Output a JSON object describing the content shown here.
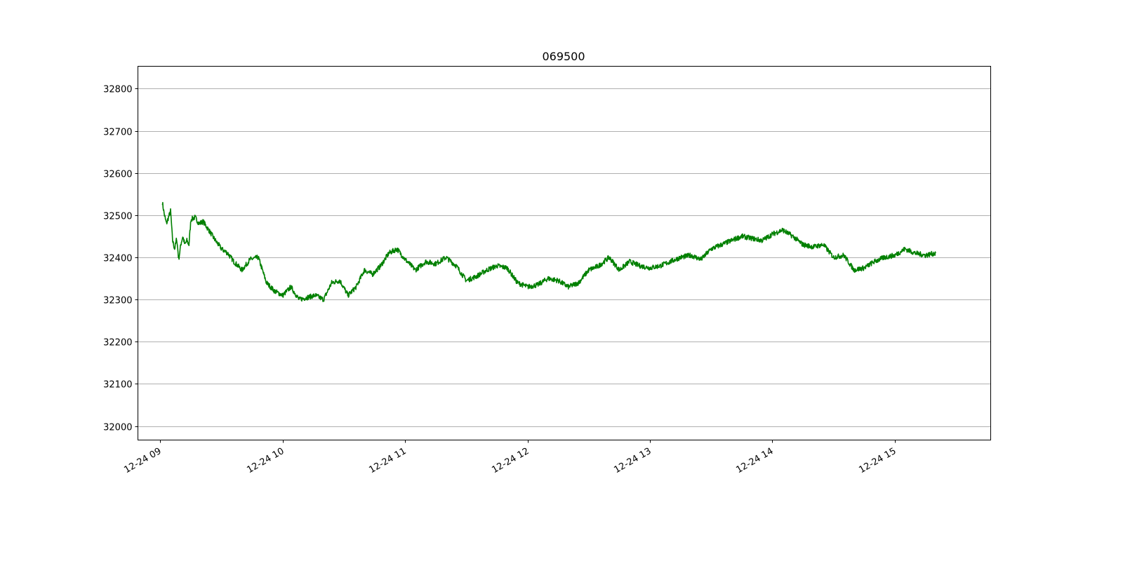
{
  "chart_data": {
    "type": "line",
    "title": "069500",
    "xlabel": "",
    "ylabel": "",
    "grid": "horizontal",
    "x_tick_labels": [
      "12-24 09",
      "12-24 10",
      "12-24 11",
      "12-24 12",
      "12-24 13",
      "12-24 14",
      "12-24 15"
    ],
    "y_tick_labels": [
      "32000",
      "32100",
      "32200",
      "32300",
      "32400",
      "32500",
      "32600",
      "32700",
      "32800"
    ],
    "xlim": [
      "12-24 08:49",
      "12-24 15:47"
    ],
    "ylim": [
      31967,
      32853
    ],
    "line_color": "#008000",
    "series": [
      {
        "x": [
          "09:01",
          "09:02",
          "09:03",
          "09:04",
          "09:05",
          "09:06",
          "09:07",
          "09:08",
          "09:09",
          "09:10",
          "09:11",
          "09:12",
          "09:13",
          "09:14",
          "09:15",
          "09:17",
          "09:19",
          "09:21",
          "09:23",
          "09:25",
          "09:27",
          "09:30",
          "09:33",
          "09:36",
          "09:40",
          "09:44",
          "09:48",
          "09:52",
          "09:56",
          "10:00",
          "10:04",
          "10:08",
          "10:12",
          "10:16",
          "10:20",
          "10:24",
          "10:28",
          "10:32",
          "10:36",
          "10:40",
          "10:44",
          "10:48",
          "10:52",
          "10:56",
          "11:00",
          "11:05",
          "11:10",
          "11:15",
          "11:20",
          "11:25",
          "11:30",
          "11:35",
          "11:40",
          "11:45",
          "11:50",
          "11:55",
          "12:00",
          "12:05",
          "12:10",
          "12:15",
          "12:20",
          "12:25",
          "12:30",
          "12:35",
          "12:40",
          "12:45",
          "12:50",
          "12:55",
          "13:00",
          "13:05",
          "13:10",
          "13:15",
          "13:20",
          "13:25",
          "13:30",
          "13:35",
          "13:40",
          "13:45",
          "13:50",
          "13:55",
          "14:00",
          "14:05",
          "14:10",
          "14:15",
          "14:20",
          "14:25",
          "14:30",
          "14:35",
          "14:40",
          "14:45",
          "14:50",
          "14:55",
          "15:00",
          "15:05",
          "15:10",
          "15:15",
          "15:20"
        ],
        "y": [
          32530,
          32500,
          32480,
          32495,
          32510,
          32440,
          32420,
          32445,
          32395,
          32430,
          32450,
          32430,
          32440,
          32430,
          32490,
          32495,
          32480,
          32485,
          32470,
          32455,
          32440,
          32420,
          32410,
          32390,
          32370,
          32395,
          32400,
          32340,
          32320,
          32310,
          32330,
          32300,
          32305,
          32310,
          32300,
          32340,
          32345,
          32310,
          32330,
          32370,
          32360,
          32380,
          32410,
          32420,
          32395,
          32370,
          32390,
          32385,
          32400,
          32380,
          32345,
          32355,
          32370,
          32380,
          32375,
          32340,
          32330,
          32335,
          32350,
          32345,
          32330,
          32340,
          32370,
          32380,
          32400,
          32370,
          32390,
          32380,
          32375,
          32380,
          32390,
          32400,
          32405,
          32395,
          32420,
          32430,
          32440,
          32450,
          32445,
          32440,
          32455,
          32465,
          32450,
          32430,
          32425,
          32430,
          32400,
          32405,
          32370,
          32375,
          32390,
          32400,
          32405,
          32420,
          32410,
          32405,
          32410
        ]
      }
    ]
  }
}
